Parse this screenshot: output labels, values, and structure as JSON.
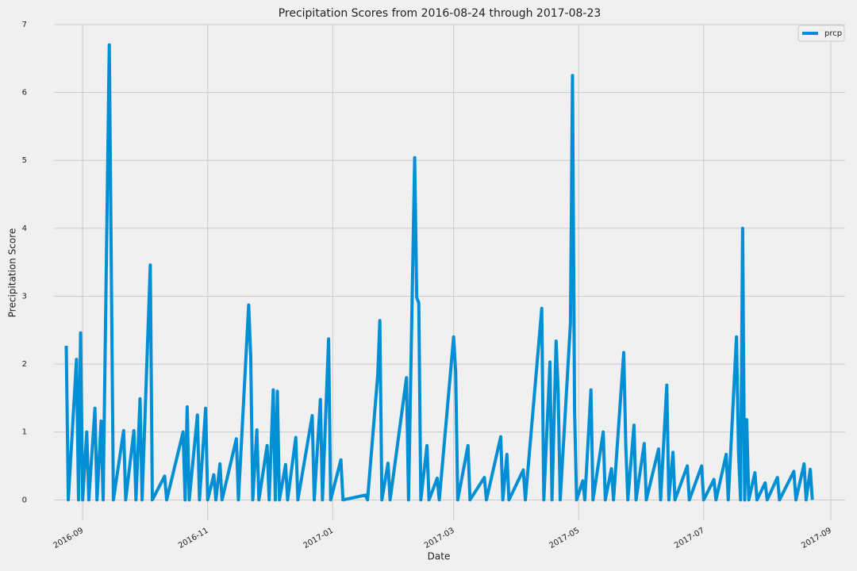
{
  "chart_data": {
    "type": "line",
    "title": "Precipitation Scores from 2016-08-24 through 2017-08-23",
    "xlabel": "Date",
    "ylabel": "Precipitation Score",
    "legend": "upper right",
    "grid": true,
    "xlim": [
      "2016-08-18",
      "2017-09-08"
    ],
    "ylim": [
      -0.3,
      7
    ],
    "yticks": [
      0,
      1,
      2,
      3,
      4,
      5,
      6,
      7
    ],
    "xticks": [
      {
        "value": "2016-09-01",
        "label": "2016-09"
      },
      {
        "value": "2016-11-01",
        "label": "2016-11"
      },
      {
        "value": "2017-01-01",
        "label": "2017-01"
      },
      {
        "value": "2017-03-01",
        "label": "2017-03"
      },
      {
        "value": "2017-05-01",
        "label": "2017-05"
      },
      {
        "value": "2017-07-01",
        "label": "2017-07"
      },
      {
        "value": "2017-09-01",
        "label": "2017-09"
      }
    ],
    "x": [
      "2016-08-24",
      "2016-08-25",
      "2016-08-29",
      "2016-08-30",
      "2016-08-31",
      "2016-09-01",
      "2016-09-03",
      "2016-09-04",
      "2016-09-07",
      "2016-09-08",
      "2016-09-10",
      "2016-09-11",
      "2016-09-14",
      "2016-09-15",
      "2016-09-16",
      "2016-09-21",
      "2016-09-22",
      "2016-09-26",
      "2016-09-27",
      "2016-09-29",
      "2016-09-30",
      "2016-10-04",
      "2016-10-05",
      "2016-10-11",
      "2016-10-12",
      "2016-10-20",
      "2016-10-21",
      "2016-10-22",
      "2016-10-23",
      "2016-10-27",
      "2016-10-28",
      "2016-10-31",
      "2016-11-01",
      "2016-11-04",
      "2016-11-05",
      "2016-11-07",
      "2016-11-08",
      "2016-11-15",
      "2016-11-16",
      "2016-11-21",
      "2016-11-22",
      "2016-11-23",
      "2016-11-25",
      "2016-11-26",
      "2016-11-30",
      "2016-12-01",
      "2016-12-03",
      "2016-12-04",
      "2016-12-05",
      "2016-12-06",
      "2016-12-09",
      "2016-12-10",
      "2016-12-14",
      "2016-12-15",
      "2016-12-22",
      "2016-12-23",
      "2016-12-26",
      "2016-12-27",
      "2016-12-30",
      "2016-12-31",
      "2017-01-05",
      "2017-01-06",
      "2017-01-17",
      "2017-01-18",
      "2017-01-23",
      "2017-01-24",
      "2017-01-25",
      "2017-01-28",
      "2017-01-29",
      "2017-02-06",
      "2017-02-07",
      "2017-02-10",
      "2017-02-11",
      "2017-02-12",
      "2017-02-13",
      "2017-02-16",
      "2017-02-17",
      "2017-02-21",
      "2017-02-22",
      "2017-03-01",
      "2017-03-02",
      "2017-03-03",
      "2017-03-08",
      "2017-03-09",
      "2017-03-16",
      "2017-03-17",
      "2017-03-24",
      "2017-03-25",
      "2017-03-27",
      "2017-03-28",
      "2017-04-04",
      "2017-04-05",
      "2017-04-13",
      "2017-04-14",
      "2017-04-17",
      "2017-04-18",
      "2017-04-20",
      "2017-04-21",
      "2017-04-22",
      "2017-04-27",
      "2017-04-28",
      "2017-04-29",
      "2017-04-30",
      "2017-05-03",
      "2017-05-04",
      "2017-05-07",
      "2017-05-08",
      "2017-05-13",
      "2017-05-14",
      "2017-05-17",
      "2017-05-18",
      "2017-05-23",
      "2017-05-24",
      "2017-05-25",
      "2017-05-28",
      "2017-05-29",
      "2017-06-02",
      "2017-06-03",
      "2017-06-09",
      "2017-06-10",
      "2017-06-13",
      "2017-06-14",
      "2017-06-16",
      "2017-06-17",
      "2017-06-23",
      "2017-06-24",
      "2017-06-30",
      "2017-07-01",
      "2017-07-06",
      "2017-07-07",
      "2017-07-12",
      "2017-07-13",
      "2017-07-17",
      "2017-07-18",
      "2017-07-19",
      "2017-07-20",
      "2017-07-21",
      "2017-07-22",
      "2017-07-23",
      "2017-07-26",
      "2017-07-27",
      "2017-07-31",
      "2017-08-01",
      "2017-08-06",
      "2017-08-07",
      "2017-08-14",
      "2017-08-15",
      "2017-08-19",
      "2017-08-20",
      "2017-08-22",
      "2017-08-23"
    ],
    "series": [
      {
        "name": "prcp",
        "color": "#008fd5",
        "values": [
          2.27,
          0,
          2.07,
          0,
          2.46,
          0,
          1.0,
          0,
          1.35,
          0,
          1.16,
          0,
          6.7,
          3.35,
          0,
          1.02,
          0,
          1.02,
          0,
          1.49,
          0,
          3.46,
          0,
          0.35,
          0,
          1.0,
          0,
          1.37,
          0,
          1.25,
          0,
          1.35,
          0,
          0.37,
          0,
          0.53,
          0,
          0.9,
          0,
          2.87,
          2.11,
          0,
          1.03,
          0,
          0.8,
          0,
          1.62,
          0,
          1.6,
          0,
          0.52,
          0,
          0.92,
          0,
          1.24,
          0,
          1.48,
          0,
          2.37,
          0,
          0.59,
          0,
          0.07,
          0,
          1.85,
          2.64,
          0,
          0.54,
          0,
          1.8,
          0,
          5.04,
          2.98,
          2.9,
          0,
          0.8,
          0,
          0.32,
          0,
          2.4,
          1.88,
          0,
          0.8,
          0,
          0.33,
          0,
          0.93,
          0,
          0.67,
          0,
          0.44,
          0,
          2.82,
          0,
          2.03,
          0,
          2.34,
          1.6,
          0,
          2.6,
          6.25,
          1.32,
          0,
          0.28,
          0,
          1.62,
          0,
          1.0,
          0,
          0.46,
          0,
          2.17,
          0.8,
          0,
          1.1,
          0,
          0.83,
          0,
          0.75,
          0,
          1.69,
          0,
          0.7,
          0,
          0.5,
          0,
          0.5,
          0,
          0.3,
          0,
          0.67,
          0,
          2.4,
          0.7,
          0,
          4.0,
          0,
          1.18,
          0,
          0.4,
          0,
          0.25,
          0,
          0.33,
          0,
          0.42,
          0,
          0.53,
          0,
          0.45,
          0
        ]
      }
    ]
  }
}
